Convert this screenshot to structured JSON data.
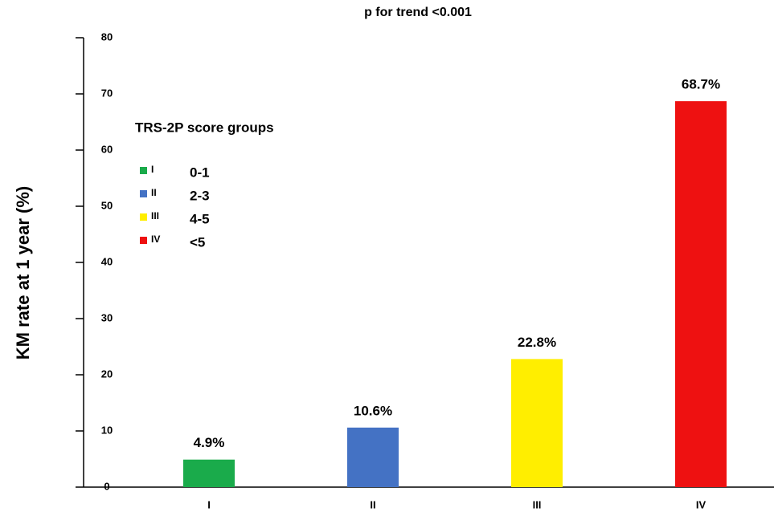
{
  "chart_data": {
    "type": "bar",
    "title": "p for trend <0.001",
    "y_label": "KM rate at 1 year (%)",
    "categories": [
      "I",
      "II",
      "III",
      "IV"
    ],
    "values": [
      4.9,
      10.6,
      22.8,
      68.7
    ],
    "value_labels": [
      "4.9%",
      "10.6%",
      "22.8%",
      "68.7%"
    ],
    "colors": [
      "#1aab4b",
      "#4472c4",
      "#ffee00",
      "#ee1111"
    ],
    "ylim": [
      0,
      80
    ],
    "yticks": [
      0,
      10,
      20,
      30,
      40,
      50,
      60,
      70,
      80
    ],
    "grid": false,
    "legend": {
      "title": "TRS-2P score groups",
      "position": "upper left",
      "items": [
        {
          "label": "I",
          "range": "0-1",
          "color": "#1aab4b"
        },
        {
          "label": "II",
          "range": "2-3",
          "color": "#4472c4"
        },
        {
          "label": "III",
          "range": "4-5",
          "color": "#ffee00"
        },
        {
          "label": "IV",
          "range": "<5",
          "color": "#ee1111"
        }
      ]
    }
  }
}
